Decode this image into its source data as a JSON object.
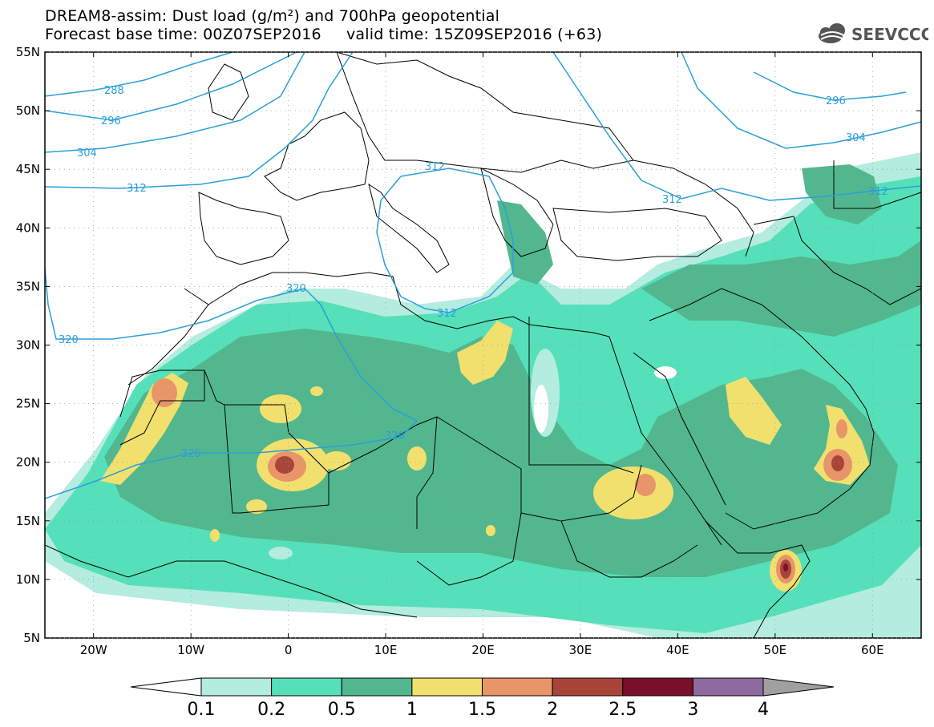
{
  "header": {
    "title_line1": "DREAM8-assim: Dust load (g/m²) and 700hPa geopotential",
    "title_line2": "Forecast base time: 00Z07SEP2016     valid time: 15Z09SEP2016 (+63)",
    "logo_text": "SEEVCCC"
  },
  "map": {
    "lon_range": [
      -25,
      65
    ],
    "lat_range": [
      5,
      55
    ],
    "lon_ticks": [
      "20W",
      "10W",
      "0",
      "10E",
      "20E",
      "30E",
      "40E",
      "50E",
      "60E"
    ],
    "lat_ticks": [
      "55N",
      "50N",
      "45N",
      "40N",
      "35N",
      "30N",
      "25N",
      "20N",
      "15N",
      "10N",
      "5N"
    ],
    "contour_labels": [
      "288",
      "296",
      "304",
      "312",
      "320",
      "320",
      "320",
      "312",
      "312",
      "312",
      "312",
      "296",
      "304"
    ]
  },
  "colorbar": {
    "levels": [
      "0.1",
      "0.2",
      "0.5",
      "1",
      "1.5",
      "2",
      "2.5",
      "3",
      "4"
    ],
    "colors": [
      "#ffffff",
      "#b4ecdf",
      "#55e0b9",
      "#52b78f",
      "#f2e06e",
      "#e8956a",
      "#a9443a",
      "#7a0f2a",
      "#8e6aa0",
      "#a0a0a0"
    ]
  },
  "colors": {
    "contour": "#2a9fd8",
    "border": "#000000",
    "sea": "#ffffff"
  }
}
